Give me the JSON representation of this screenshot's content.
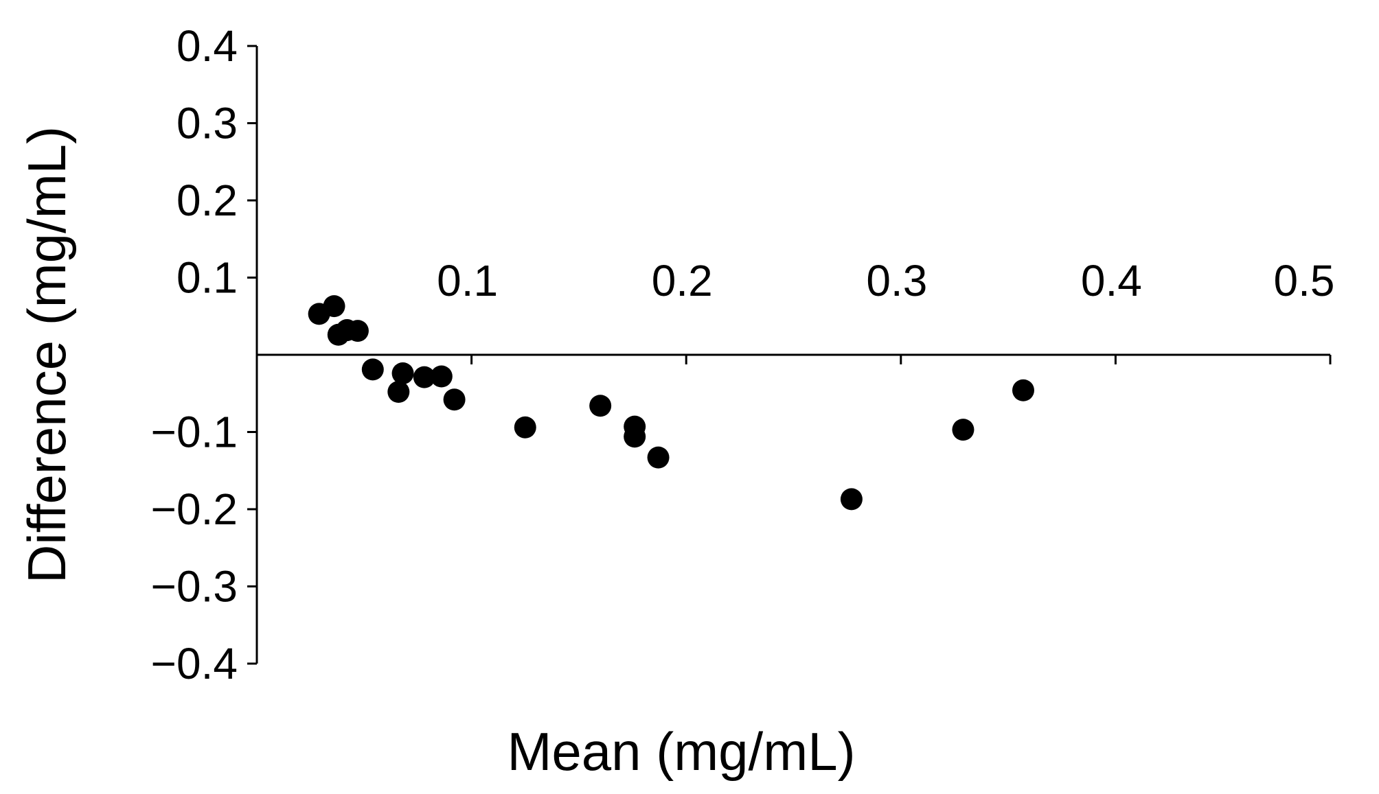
{
  "chart_data": {
    "type": "scatter",
    "title": "",
    "xlabel": "Mean (mg/mL)",
    "ylabel": "Difference (mg/mL)",
    "xlim": [
      0,
      0.5
    ],
    "ylim": [
      -0.4,
      0.4
    ],
    "x_ticks": [
      0.1,
      0.2,
      0.3,
      0.4,
      0.5
    ],
    "x_tick_labels": [
      "0.1",
      "0.2",
      "0.3",
      "0.4",
      "0.5"
    ],
    "y_ticks": [
      0.4,
      0.3,
      0.2,
      0.1,
      -0.1,
      -0.2,
      -0.3,
      -0.4
    ],
    "y_tick_labels": [
      "0.4",
      "0.3",
      "0.2",
      "0.1",
      "−0.1",
      "−0.2",
      "−0.3",
      "−0.4"
    ],
    "grid": false,
    "legend": "none",
    "marker_color": "#000000",
    "series": [
      {
        "points": [
          {
            "x": 0.029,
            "y": 0.053
          },
          {
            "x": 0.036,
            "y": 0.063
          },
          {
            "x": 0.038,
            "y": 0.026
          },
          {
            "x": 0.042,
            "y": 0.032
          },
          {
            "x": 0.047,
            "y": 0.031
          },
          {
            "x": 0.054,
            "y": -0.019
          },
          {
            "x": 0.066,
            "y": -0.048
          },
          {
            "x": 0.068,
            "y": -0.024
          },
          {
            "x": 0.078,
            "y": -0.029
          },
          {
            "x": 0.086,
            "y": -0.028
          },
          {
            "x": 0.092,
            "y": -0.058
          },
          {
            "x": 0.125,
            "y": -0.094
          },
          {
            "x": 0.16,
            "y": -0.066
          },
          {
            "x": 0.176,
            "y": -0.093
          },
          {
            "x": 0.176,
            "y": -0.106
          },
          {
            "x": 0.187,
            "y": -0.133
          },
          {
            "x": 0.277,
            "y": -0.187
          },
          {
            "x": 0.329,
            "y": -0.097
          },
          {
            "x": 0.357,
            "y": -0.046
          }
        ]
      }
    ]
  }
}
